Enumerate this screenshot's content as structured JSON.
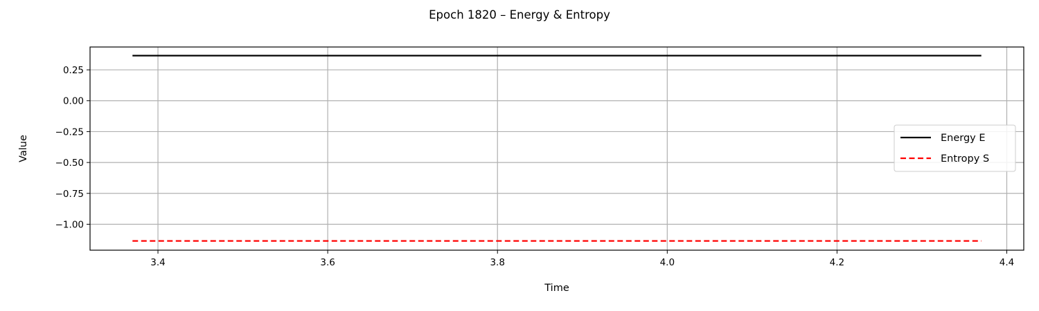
{
  "chart_data": {
    "type": "line",
    "title": "Epoch 1820 – Energy & Entropy",
    "xlabel": "Time",
    "ylabel": "Value",
    "xlim": [
      3.32,
      4.42
    ],
    "ylim": [
      -1.21,
      0.435
    ],
    "xticks": [
      3.4,
      3.6,
      3.8,
      4.0,
      4.2,
      4.4
    ],
    "xtick_labels": [
      "3.4",
      "3.6",
      "3.8",
      "4.0",
      "4.2",
      "4.4"
    ],
    "yticks": [
      0.25,
      0.0,
      -0.25,
      -0.5,
      -0.75,
      -1.0
    ],
    "ytick_labels": [
      "0.25",
      "0.00",
      "−0.25",
      "−0.50",
      "−0.75",
      "−1.00"
    ],
    "grid": true,
    "legend_position": "center-right",
    "series": [
      {
        "name": "Energy E",
        "color": "#000000",
        "style": "solid",
        "x": [
          3.37,
          4.37
        ],
        "y": [
          0.365,
          0.365
        ]
      },
      {
        "name": "Entropy S",
        "color": "#ff0000",
        "style": "dashed",
        "x": [
          3.37,
          4.37
        ],
        "y": [
          -1.135,
          -1.135
        ]
      }
    ]
  }
}
